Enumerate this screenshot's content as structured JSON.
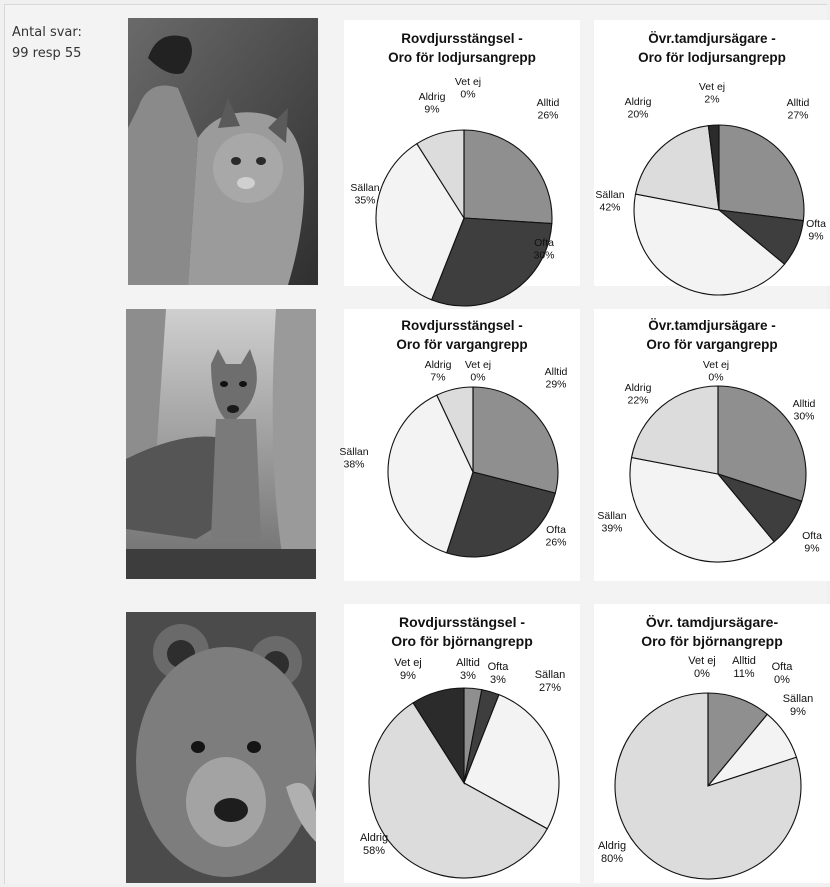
{
  "note": {
    "line1": "Antal svar:",
    "line2": "99 resp 55"
  },
  "photos": [
    {
      "animal": "lynx"
    },
    {
      "animal": "wolf"
    },
    {
      "animal": "bear"
    }
  ],
  "colors": {
    "Alltid": "#8f8f8f",
    "Ofta": "#3e3e3e",
    "Sällan": "#f3f3f3",
    "Aldrig": "#dcdcdc",
    "Vet ej": "#2b2b2b",
    "Vet ej light": "#e4e4e4"
  },
  "chart_data": [
    {
      "type": "pie",
      "title": [
        "Rovdjursstängsel -",
        "Oro för lodjursangrepp"
      ],
      "slices": [
        {
          "label": "Alltid",
          "value": 26
        },
        {
          "label": "Ofta",
          "value": 30
        },
        {
          "label": "Sällan",
          "value": 35
        },
        {
          "label": "Aldrig",
          "value": 9
        },
        {
          "label": "Vet ej",
          "value": 0
        }
      ]
    },
    {
      "type": "pie",
      "title": [
        "Övr.tamdjursägare -",
        "Oro för lodjursangrepp"
      ],
      "slices": [
        {
          "label": "Alltid",
          "value": 27
        },
        {
          "label": "Ofta",
          "value": 9
        },
        {
          "label": "Sällan",
          "value": 42
        },
        {
          "label": "Aldrig",
          "value": 20
        },
        {
          "label": "Vet ej",
          "value": 2
        }
      ]
    },
    {
      "type": "pie",
      "title": [
        "Rovdjursstängsel -",
        "Oro för vargangrepp"
      ],
      "slices": [
        {
          "label": "Alltid",
          "value": 29
        },
        {
          "label": "Ofta",
          "value": 26
        },
        {
          "label": "Sällan",
          "value": 38
        },
        {
          "label": "Aldrig",
          "value": 7
        },
        {
          "label": "Vet ej",
          "value": 0
        }
      ]
    },
    {
      "type": "pie",
      "title": [
        "Övr.tamdjursägare -",
        "Oro för vargangrepp"
      ],
      "slices": [
        {
          "label": "Alltid",
          "value": 30
        },
        {
          "label": "Ofta",
          "value": 9
        },
        {
          "label": "Sällan",
          "value": 39
        },
        {
          "label": "Aldrig",
          "value": 22
        },
        {
          "label": "Vet ej",
          "value": 0
        }
      ]
    },
    {
      "type": "pie",
      "title": [
        "Rovdjursstängsel -",
        "Oro för björnangrepp"
      ],
      "slices": [
        {
          "label": "Alltid",
          "value": 3
        },
        {
          "label": "Ofta",
          "value": 3
        },
        {
          "label": "Sällan",
          "value": 27
        },
        {
          "label": "Aldrig",
          "value": 58
        },
        {
          "label": "Vet ej",
          "value": 9
        }
      ]
    },
    {
      "type": "pie",
      "title": [
        "Övr. tamdjursägare-",
        "Oro för björnangrepp"
      ],
      "slices": [
        {
          "label": "Alltid",
          "value": 11
        },
        {
          "label": "Ofta",
          "value": 0
        },
        {
          "label": "Sällan",
          "value": 9
        },
        {
          "label": "Aldrig",
          "value": 80
        },
        {
          "label": "Vet ej",
          "value": 0
        }
      ]
    }
  ]
}
